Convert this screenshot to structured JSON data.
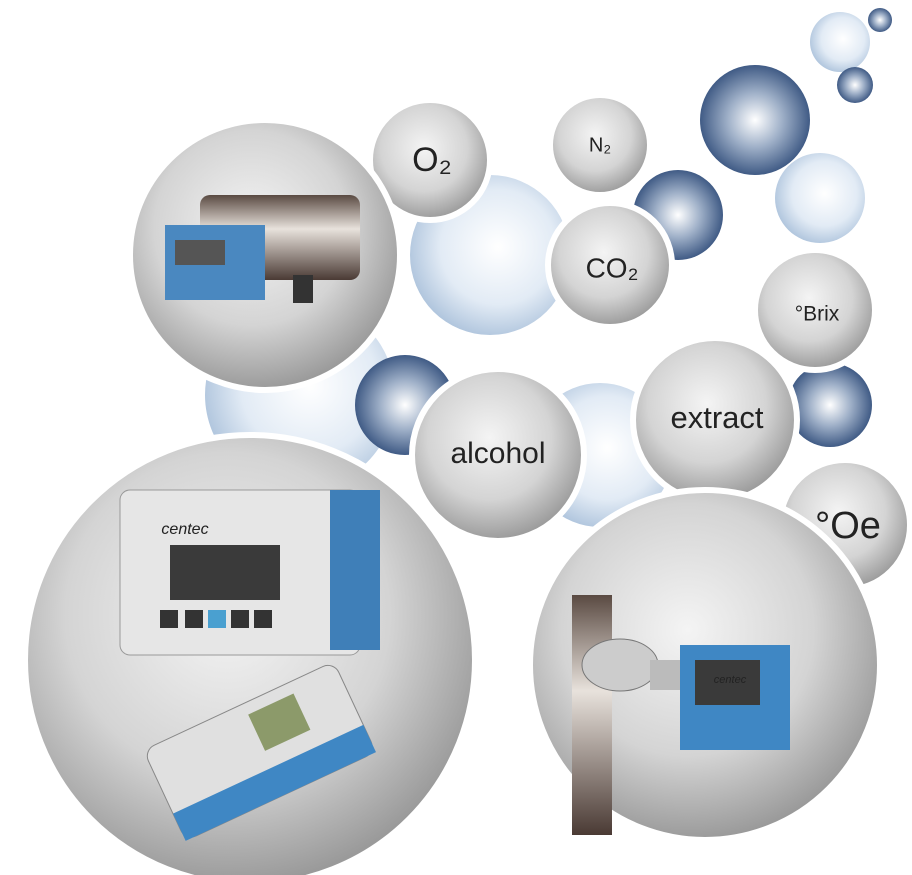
{
  "bubbles": [
    {
      "label": "O₂"
    },
    {
      "label": "N₂"
    },
    {
      "label": "CO₂"
    },
    {
      "label": "°Brix"
    },
    {
      "label": "extract"
    },
    {
      "label": "alcohol"
    },
    {
      "label": "°Oe"
    }
  ],
  "brand": "centec"
}
